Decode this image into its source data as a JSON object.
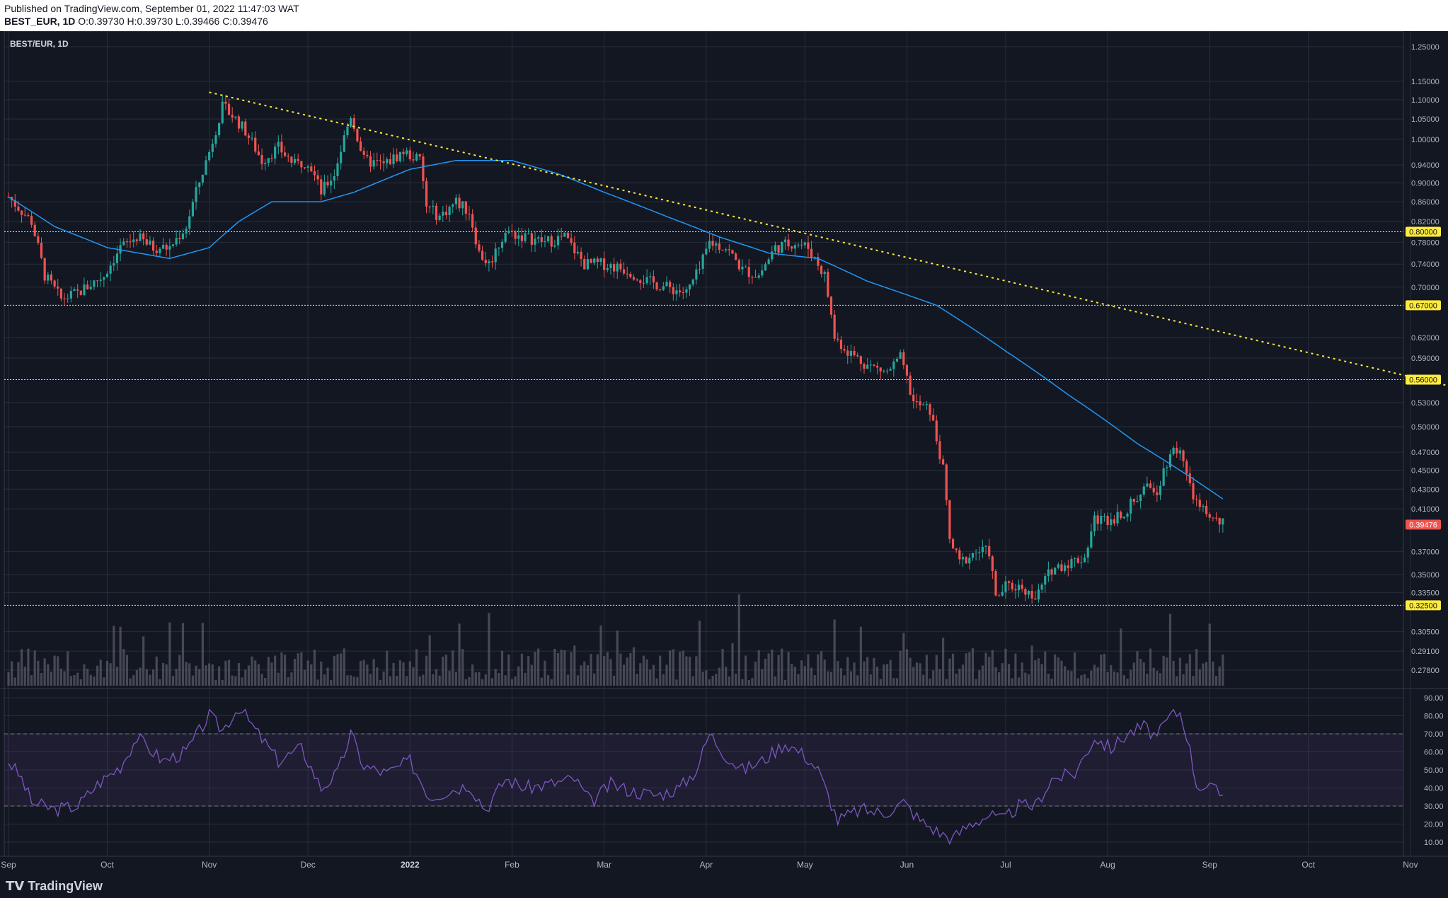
{
  "header": {
    "published": "Published on TradingView.com, September 01, 2022 11:47:03 WAT",
    "symbol": "BEST_EUR, 1D",
    "ohlc": "O:0.39730 H:0.39730 L:0.39466 C:0.39476"
  },
  "footer": {
    "brand": "TradingView"
  },
  "colors": {
    "bg": "#131722",
    "grid": "#2a2e39",
    "up": "#26a69a",
    "down": "#ef5350",
    "ma": "#2196f3",
    "trend": "#ffeb3b",
    "rsi": "#7e57c2"
  },
  "chart_data": {
    "type": "line",
    "title": "BEST/EUR, 1D",
    "price_axis_ticks": [
      "1.25000",
      "1.15000",
      "1.10000",
      "1.05000",
      "1.00000",
      "0.94000",
      "0.90000",
      "0.86000",
      "0.82000",
      "0.78000",
      "0.74000",
      "0.70000",
      "0.62000",
      "0.59000",
      "0.53000",
      "0.50000",
      "0.47000",
      "0.45000",
      "0.43000",
      "0.41000",
      "0.37000",
      "0.35000",
      "0.33500",
      "0.30500",
      "0.29100",
      "0.27800"
    ],
    "level_labels": [
      {
        "label": "0.80000",
        "value": 0.8
      },
      {
        "label": "0.67000",
        "value": 0.67
      },
      {
        "label": "0.56000",
        "value": 0.56
      },
      {
        "label": "0.32500",
        "value": 0.325
      }
    ],
    "last_price": {
      "label": "0.39476",
      "value": 0.39476
    },
    "time_labels": [
      "Sep",
      "Oct",
      "Nov",
      "Dec",
      "2022",
      "Feb",
      "Mar",
      "Apr",
      "May",
      "Jun",
      "Jul",
      "Aug",
      "Sep",
      "Oct",
      "Nov"
    ],
    "rsi_ticks": [
      "90.00",
      "80.00",
      "70.00",
      "60.00",
      "50.00",
      "40.00",
      "30.00",
      "20.00",
      "10.00"
    ],
    "rsi_band": [
      30,
      70
    ],
    "trendline": {
      "from": {
        "date": "2021-11-01",
        "price": 1.12
      },
      "to": {
        "date": "2022-11-24",
        "price": 0.54
      }
    },
    "price_path": [
      [
        "2021-09-01",
        0.87
      ],
      [
        "2021-09-08",
        0.82
      ],
      [
        "2021-09-12",
        0.72
      ],
      [
        "2021-09-17",
        0.68
      ],
      [
        "2021-09-22",
        0.69
      ],
      [
        "2021-09-30",
        0.72
      ],
      [
        "2021-10-05",
        0.77
      ],
      [
        "2021-10-10",
        0.79
      ],
      [
        "2021-10-15",
        0.77
      ],
      [
        "2021-10-20",
        0.77
      ],
      [
        "2021-10-25",
        0.81
      ],
      [
        "2021-10-28",
        0.88
      ],
      [
        "2021-11-01",
        0.97
      ],
      [
        "2021-11-05",
        1.08
      ],
      [
        "2021-11-08",
        1.06
      ],
      [
        "2021-11-12",
        1.02
      ],
      [
        "2021-11-17",
        0.95
      ],
      [
        "2021-11-22",
        0.98
      ],
      [
        "2021-11-27",
        0.94
      ],
      [
        "2021-12-01",
        0.95
      ],
      [
        "2021-12-05",
        0.88
      ],
      [
        "2021-12-09",
        0.92
      ],
      [
        "2021-12-14",
        1.06
      ],
      [
        "2021-12-18",
        0.95
      ],
      [
        "2021-12-24",
        0.94
      ],
      [
        "2021-12-30",
        0.97
      ],
      [
        "2022-01-04",
        0.95
      ],
      [
        "2022-01-06",
        0.85
      ],
      [
        "2022-01-10",
        0.83
      ],
      [
        "2022-01-15",
        0.86
      ],
      [
        "2022-01-19",
        0.84
      ],
      [
        "2022-01-22",
        0.76
      ],
      [
        "2022-01-25",
        0.74
      ],
      [
        "2022-01-30",
        0.8
      ],
      [
        "2022-02-05",
        0.79
      ],
      [
        "2022-02-11",
        0.78
      ],
      [
        "2022-02-17",
        0.79
      ],
      [
        "2022-02-23",
        0.74
      ],
      [
        "2022-03-01",
        0.74
      ],
      [
        "2022-03-08",
        0.73
      ],
      [
        "2022-03-14",
        0.71
      ],
      [
        "2022-03-20",
        0.7
      ],
      [
        "2022-03-26",
        0.69
      ],
      [
        "2022-03-30",
        0.73
      ],
      [
        "2022-04-02",
        0.78
      ],
      [
        "2022-04-07",
        0.77
      ],
      [
        "2022-04-12",
        0.73
      ],
      [
        "2022-04-17",
        0.72
      ],
      [
        "2022-04-22",
        0.77
      ],
      [
        "2022-04-28",
        0.78
      ],
      [
        "2022-05-02",
        0.77
      ],
      [
        "2022-05-07",
        0.72
      ],
      [
        "2022-05-10",
        0.62
      ],
      [
        "2022-05-14",
        0.6
      ],
      [
        "2022-05-20",
        0.58
      ],
      [
        "2022-05-26",
        0.57
      ],
      [
        "2022-05-30",
        0.59
      ],
      [
        "2022-06-03",
        0.53
      ],
      [
        "2022-06-08",
        0.52
      ],
      [
        "2022-06-12",
        0.45
      ],
      [
        "2022-06-14",
        0.38
      ],
      [
        "2022-06-17",
        0.36
      ],
      [
        "2022-06-22",
        0.37
      ],
      [
        "2022-06-26",
        0.37
      ],
      [
        "2022-06-28",
        0.33
      ],
      [
        "2022-07-01",
        0.34
      ],
      [
        "2022-07-06",
        0.34
      ],
      [
        "2022-07-10",
        0.33
      ],
      [
        "2022-07-15",
        0.355
      ],
      [
        "2022-07-20",
        0.36
      ],
      [
        "2022-07-25",
        0.365
      ],
      [
        "2022-07-28",
        0.4
      ],
      [
        "2022-08-02",
        0.4
      ],
      [
        "2022-08-07",
        0.41
      ],
      [
        "2022-08-12",
        0.43
      ],
      [
        "2022-08-16",
        0.43
      ],
      [
        "2022-08-20",
        0.47
      ],
      [
        "2022-08-23",
        0.475
      ],
      [
        "2022-08-26",
        0.43
      ],
      [
        "2022-08-29",
        0.41
      ],
      [
        "2022-09-02",
        0.4
      ],
      [
        "2022-09-05",
        0.395
      ]
    ],
    "ma_path": [
      [
        "2021-09-01",
        0.87
      ],
      [
        "2021-09-15",
        0.81
      ],
      [
        "2021-10-01",
        0.77
      ],
      [
        "2021-10-20",
        0.75
      ],
      [
        "2021-11-01",
        0.77
      ],
      [
        "2021-11-10",
        0.82
      ],
      [
        "2021-11-20",
        0.86
      ],
      [
        "2021-12-05",
        0.86
      ],
      [
        "2021-12-15",
        0.88
      ],
      [
        "2022-01-01",
        0.93
      ],
      [
        "2022-01-15",
        0.95
      ],
      [
        "2022-02-01",
        0.95
      ],
      [
        "2022-02-15",
        0.92
      ],
      [
        "2022-03-01",
        0.88
      ],
      [
        "2022-03-20",
        0.83
      ],
      [
        "2022-04-05",
        0.79
      ],
      [
        "2022-04-20",
        0.76
      ],
      [
        "2022-05-05",
        0.75
      ],
      [
        "2022-05-20",
        0.71
      ],
      [
        "2022-06-10",
        0.67
      ],
      [
        "2022-07-01",
        0.6
      ],
      [
        "2022-07-20",
        0.54
      ],
      [
        "2022-08-10",
        0.48
      ],
      [
        "2022-09-05",
        0.42
      ]
    ],
    "rsi_path": [
      [
        "2021-09-01",
        55
      ],
      [
        "2021-09-05",
        45
      ],
      [
        "2021-09-08",
        32
      ],
      [
        "2021-09-15",
        28
      ],
      [
        "2021-09-22",
        30
      ],
      [
        "2021-09-28",
        42
      ],
      [
        "2021-10-05",
        52
      ],
      [
        "2021-10-10",
        68
      ],
      [
        "2021-10-18",
        55
      ],
      [
        "2021-10-25",
        60
      ],
      [
        "2021-11-01",
        80
      ],
      [
        "2021-11-05",
        72
      ],
      [
        "2021-11-10",
        85
      ],
      [
        "2021-11-15",
        72
      ],
      [
        "2021-11-22",
        55
      ],
      [
        "2021-11-29",
        62
      ],
      [
        "2021-12-05",
        40
      ],
      [
        "2021-12-10",
        48
      ],
      [
        "2021-12-14",
        70
      ],
      [
        "2021-12-18",
        52
      ],
      [
        "2021-12-25",
        48
      ],
      [
        "2022-01-01",
        55
      ],
      [
        "2022-01-07",
        35
      ],
      [
        "2022-01-12",
        38
      ],
      [
        "2022-01-19",
        42
      ],
      [
        "2022-01-24",
        28
      ],
      [
        "2022-01-30",
        45
      ],
      [
        "2022-02-05",
        40
      ],
      [
        "2022-02-12",
        42
      ],
      [
        "2022-02-20",
        45
      ],
      [
        "2022-02-25",
        32
      ],
      [
        "2022-03-03",
        42
      ],
      [
        "2022-03-10",
        38
      ],
      [
        "2022-03-17",
        36
      ],
      [
        "2022-03-24",
        40
      ],
      [
        "2022-03-29",
        50
      ],
      [
        "2022-04-02",
        70
      ],
      [
        "2022-04-07",
        58
      ],
      [
        "2022-04-12",
        50
      ],
      [
        "2022-04-18",
        55
      ],
      [
        "2022-04-25",
        65
      ],
      [
        "2022-05-01",
        58
      ],
      [
        "2022-05-05",
        50
      ],
      [
        "2022-05-11",
        22
      ],
      [
        "2022-05-18",
        28
      ],
      [
        "2022-05-25",
        26
      ],
      [
        "2022-05-31",
        32
      ],
      [
        "2022-06-05",
        22
      ],
      [
        "2022-06-11",
        15
      ],
      [
        "2022-06-15",
        12
      ],
      [
        "2022-06-20",
        20
      ],
      [
        "2022-06-26",
        25
      ],
      [
        "2022-06-30",
        22
      ],
      [
        "2022-07-05",
        30
      ],
      [
        "2022-07-10",
        30
      ],
      [
        "2022-07-15",
        45
      ],
      [
        "2022-07-22",
        48
      ],
      [
        "2022-07-28",
        68
      ],
      [
        "2022-08-02",
        62
      ],
      [
        "2022-08-07",
        70
      ],
      [
        "2022-08-12",
        74
      ],
      [
        "2022-08-16",
        68
      ],
      [
        "2022-08-20",
        80
      ],
      [
        "2022-08-23",
        82
      ],
      [
        "2022-08-25",
        70
      ],
      [
        "2022-08-28",
        42
      ],
      [
        "2022-09-01",
        40
      ],
      [
        "2022-09-05",
        36
      ]
    ]
  }
}
